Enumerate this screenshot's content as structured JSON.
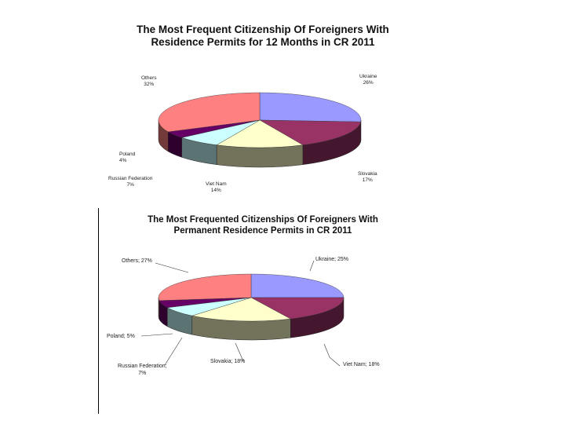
{
  "chart_data": [
    {
      "type": "pie",
      "title_lines": [
        "The Most Frequent Citizenship Of Foreigners With",
        "Residence Permits for 12 Months in CR 2011"
      ],
      "slices": [
        {
          "name": "Ukraine",
          "value": 26,
          "label_text": "Ukraine",
          "pct_text": "26%",
          "color": "#9999ff"
        },
        {
          "name": "Slovakia",
          "value": 17,
          "label_text": "Slovakia",
          "pct_text": "17%",
          "color": "#993366"
        },
        {
          "name": "Viet Nam",
          "value": 14,
          "label_text": "Viet Nam",
          "pct_text": "14%",
          "color": "#ffffcc"
        },
        {
          "name": "Russian Federation",
          "value": 7,
          "label_text": "Russian Federation",
          "pct_text": "7%",
          "color": "#ccffff"
        },
        {
          "name": "Poland",
          "value": 4,
          "label_text": "Poland",
          "pct_text": "4%",
          "color": "#660066"
        },
        {
          "name": "Others",
          "value": 32,
          "label_text": "Others",
          "pct_text": "32%",
          "color": "#ff8080"
        }
      ]
    },
    {
      "type": "pie",
      "title_lines": [
        "The Most Frequented Citizenships Of Foreigners With",
        "Permanent Residence Permits in CR 2011"
      ],
      "slices": [
        {
          "name": "Ukraine",
          "value": 25,
          "label_text": "Ukraine; 25%",
          "color": "#9999ff"
        },
        {
          "name": "Viet Nam",
          "value": 18,
          "label_text": "Viet Nam; 18%",
          "color": "#993366"
        },
        {
          "name": "Slovakia",
          "value": 18,
          "label_text": "Slovakia; 18%",
          "color": "#ffffcc"
        },
        {
          "name": "Russian Federation",
          "value": 7,
          "label_text": "Russian Federation;",
          "pct_text": "7%",
          "color": "#ccffff"
        },
        {
          "name": "Poland",
          "value": 5,
          "label_text": "Poland; 5%",
          "color": "#660066"
        },
        {
          "name": "Others",
          "value": 27,
          "label_text": "Others; 27%",
          "color": "#ff8080"
        }
      ]
    }
  ]
}
